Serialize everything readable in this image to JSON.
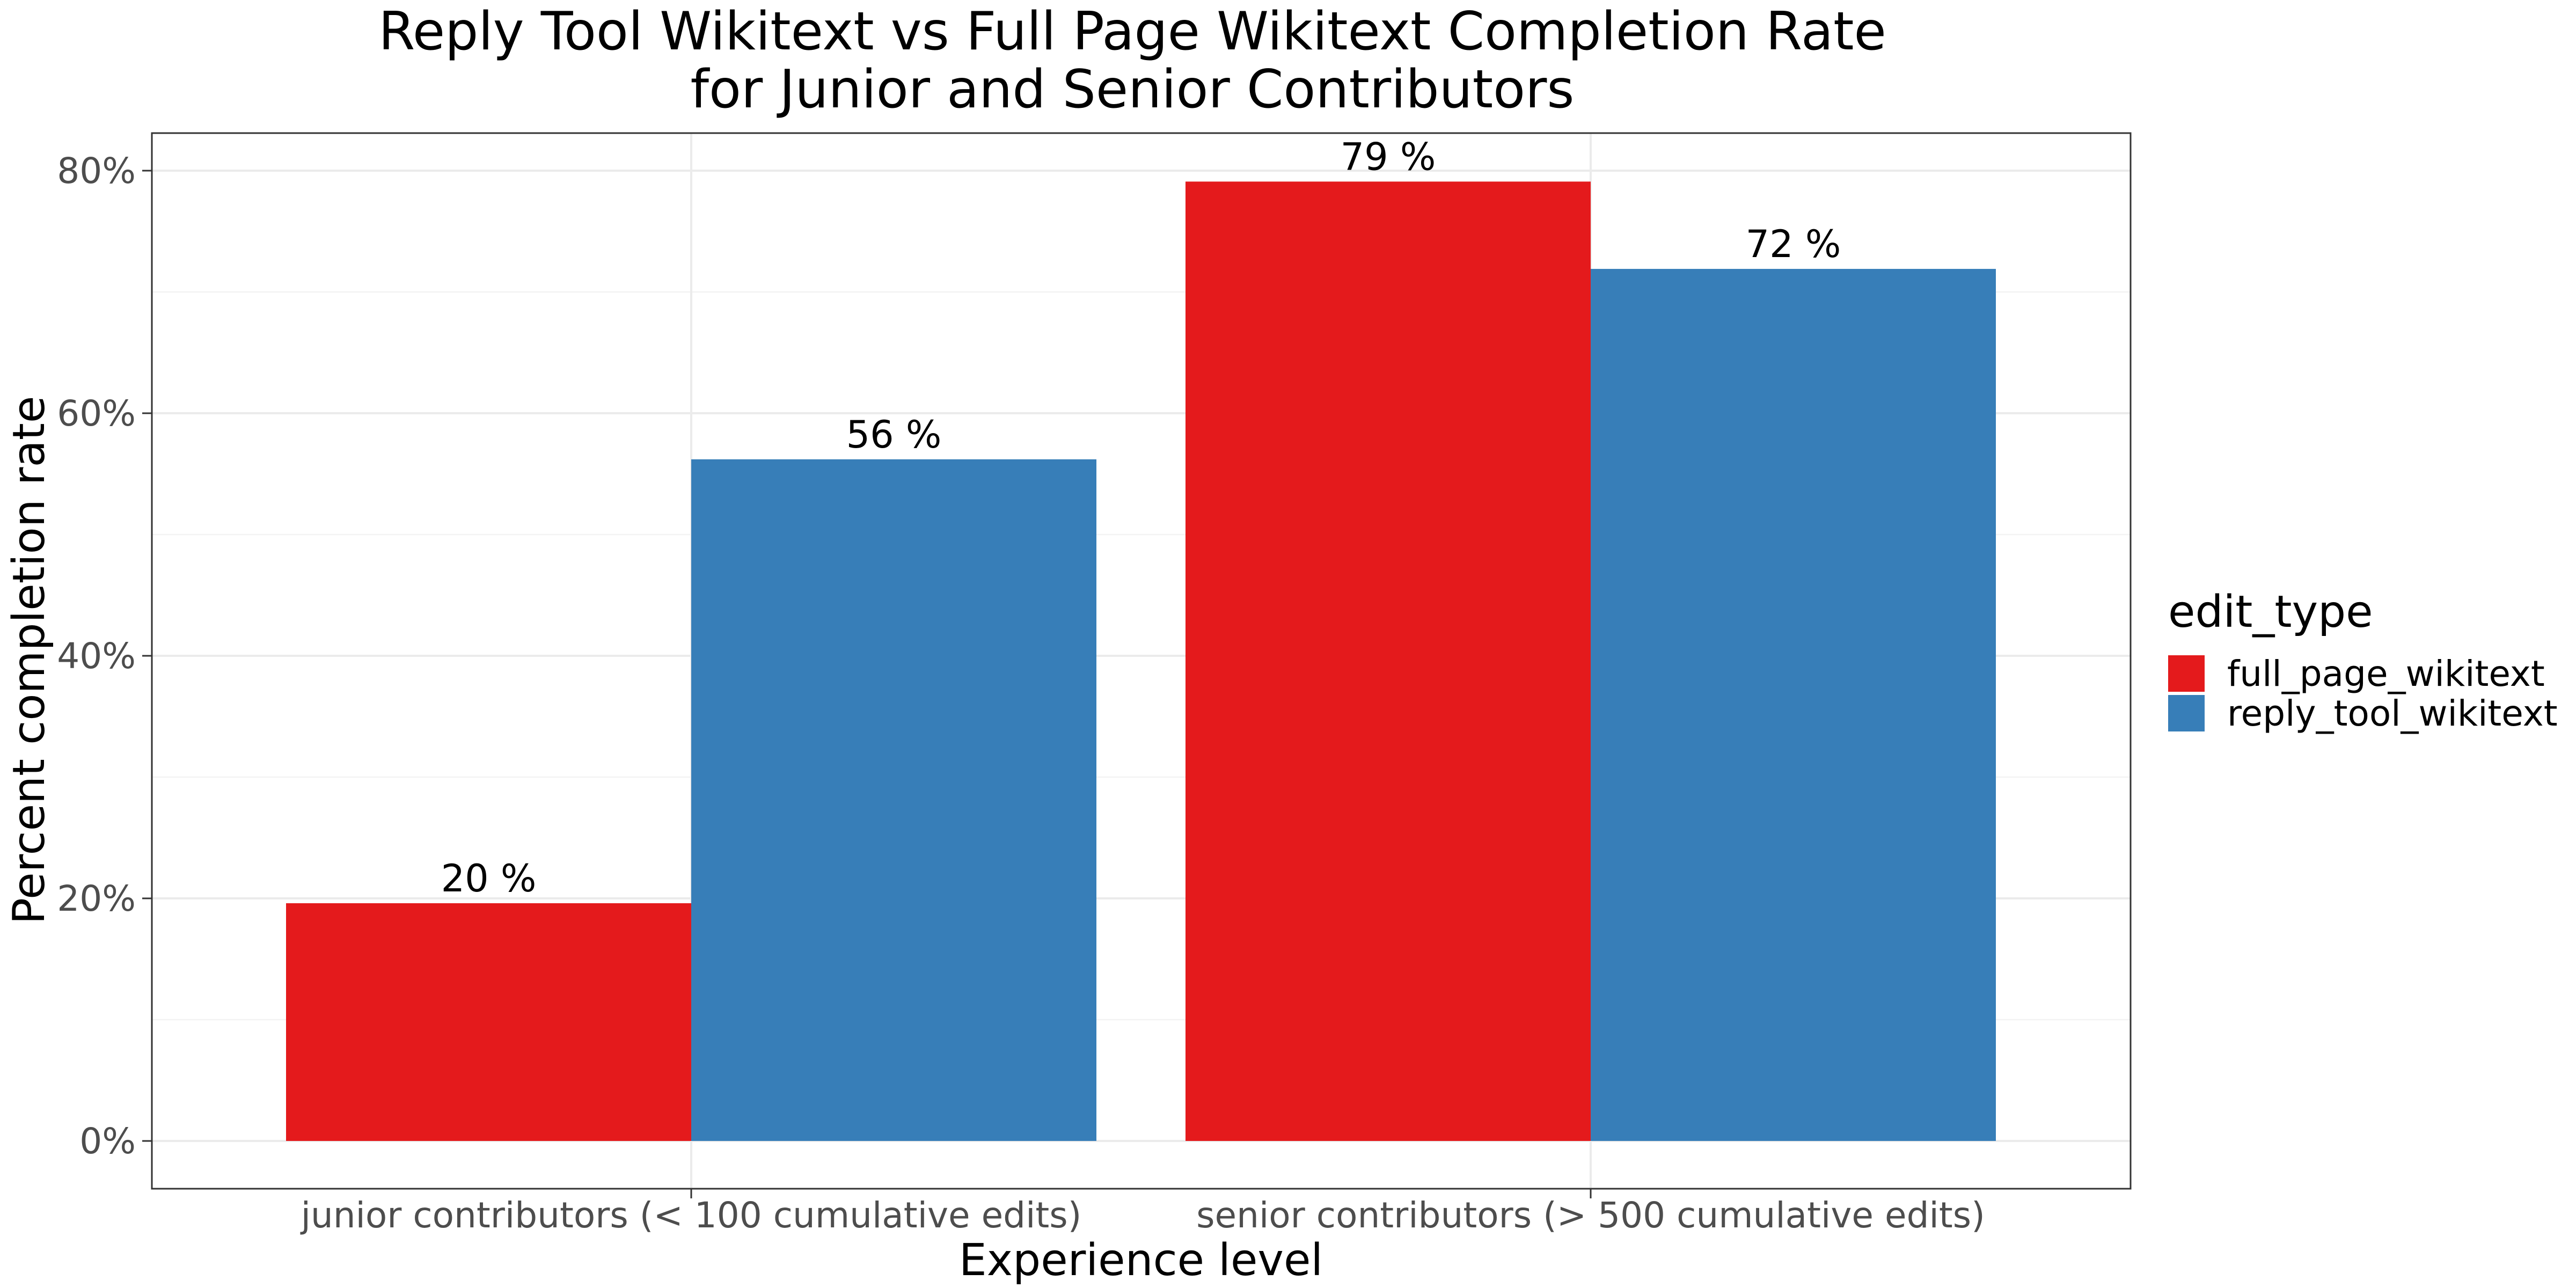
{
  "chart_data": {
    "type": "bar",
    "title": [
      "Reply Tool Wikitext vs Full Page Wikitext Completion Rate",
      "for Junior and Senior Contributors"
    ],
    "xlabel": "Experience level",
    "ylabel": "Percent completion rate",
    "categories": [
      "junior contributors (< 100 cumulative edits)",
      "senior contributors (> 500 cumulative edits)"
    ],
    "series": [
      {
        "name": "full_page_wikitext",
        "color": "#e41a1c",
        "values": [
          19.6,
          79.1
        ],
        "labels": [
          "20 %",
          "79 %"
        ]
      },
      {
        "name": "reply_tool_wikitext",
        "color": "#377eb8",
        "values": [
          56.2,
          71.9
        ],
        "labels": [
          "56 %",
          "72 %"
        ]
      }
    ],
    "ylim": [
      0,
      84
    ],
    "yticks": [
      0,
      20,
      40,
      60,
      80
    ],
    "ytick_labels": [
      "0%",
      "20%",
      "40%",
      "60%",
      "80%"
    ],
    "grid": true,
    "legend": {
      "title": "edit_type",
      "placement": "right"
    }
  }
}
